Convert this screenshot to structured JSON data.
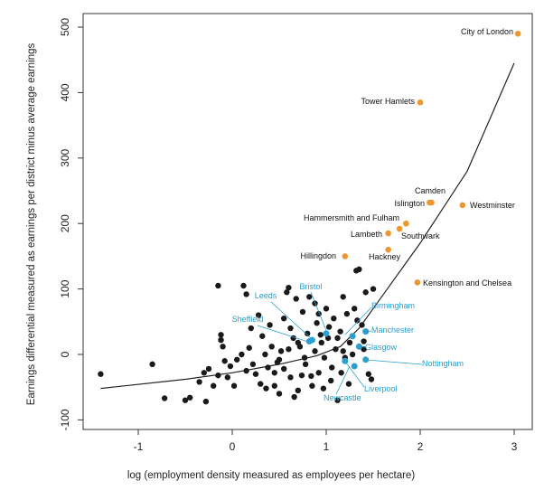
{
  "chart_data": {
    "type": "scatter",
    "xlabel": "log  (employment density measured as employees per hectare)",
    "ylabel": "Earnings differential measured as earnings per district minus average earnings",
    "xlim": [
      -1.6,
      3.2
    ],
    "ylim": [
      -100,
      520
    ],
    "xticks": [
      -1,
      0,
      1,
      2,
      3
    ],
    "yticks": [
      -100,
      0,
      100,
      200,
      300,
      400,
      500
    ],
    "colors": {
      "other": "#1a1a1a",
      "cities": "#2a9fd0",
      "london": "#f0962e",
      "fit": "#222222"
    },
    "fit_line": [
      [
        -1.4,
        -52
      ],
      [
        -0.5,
        -38
      ],
      [
        0.0,
        -28
      ],
      [
        0.5,
        -15
      ],
      [
        0.9,
        -2
      ],
      [
        1.15,
        12
      ],
      [
        1.35,
        40
      ],
      [
        1.6,
        90
      ],
      [
        2.0,
        170
      ],
      [
        2.5,
        280
      ],
      [
        3.0,
        445
      ]
    ],
    "london_points": [
      {
        "label": "City of London",
        "x": 3.04,
        "y": 490
      },
      {
        "label": "Tower Hamlets",
        "x": 2.0,
        "y": 385
      },
      {
        "label": "Westminster",
        "x": 2.45,
        "y": 228
      },
      {
        "label": "Camden",
        "x": 2.12,
        "y": 232
      },
      {
        "label": "Islington",
        "x": 2.1,
        "y": 232
      },
      {
        "label": "Hammersmith and Fulham",
        "x": 1.85,
        "y": 200
      },
      {
        "label": "Southwark",
        "x": 1.78,
        "y": 192
      },
      {
        "label": "Lambeth",
        "x": 1.66,
        "y": 185
      },
      {
        "label": "Hackney",
        "x": 1.66,
        "y": 160
      },
      {
        "label": "Hillingdon",
        "x": 1.2,
        "y": 150
      },
      {
        "label": "Kensington and Chelsea",
        "x": 1.97,
        "y": 110
      }
    ],
    "city_points": [
      {
        "label": "Bristol",
        "x": 1.0,
        "y": 32
      },
      {
        "label": "Leeds",
        "x": 0.85,
        "y": 22
      },
      {
        "label": "Sheffield",
        "x": 0.82,
        "y": 20
      },
      {
        "label": "Birmingham",
        "x": 1.28,
        "y": 28
      },
      {
        "label": "Manchester",
        "x": 1.42,
        "y": 35
      },
      {
        "label": "Glasgow",
        "x": 1.35,
        "y": 12
      },
      {
        "label": "Nottingham",
        "x": 1.42,
        "y": -8
      },
      {
        "label": "Liverpool",
        "x": 1.2,
        "y": -10
      },
      {
        "label": "Newcastle",
        "x": 1.3,
        "y": -18
      }
    ],
    "other_points": [
      [
        -1.4,
        -30
      ],
      [
        -0.85,
        -15
      ],
      [
        -0.72,
        -67
      ],
      [
        -0.5,
        -70
      ],
      [
        -0.45,
        -66
      ],
      [
        -0.28,
        -72
      ],
      [
        -0.35,
        -42
      ],
      [
        -0.3,
        -28
      ],
      [
        -0.25,
        -22
      ],
      [
        -0.2,
        -48
      ],
      [
        -0.15,
        -32
      ],
      [
        -0.12,
        30
      ],
      [
        -0.1,
        12
      ],
      [
        -0.12,
        22
      ],
      [
        -0.15,
        105
      ],
      [
        -0.08,
        -10
      ],
      [
        -0.05,
        -35
      ],
      [
        0.05,
        -8
      ],
      [
        0.1,
        0
      ],
      [
        0.12,
        105
      ],
      [
        0.15,
        92
      ],
      [
        0.18,
        10
      ],
      [
        0.22,
        -15
      ],
      [
        0.25,
        -30
      ],
      [
        0.3,
        -45
      ],
      [
        0.32,
        28
      ],
      [
        0.35,
        0
      ],
      [
        0.38,
        -20
      ],
      [
        0.4,
        45
      ],
      [
        0.42,
        12
      ],
      [
        0.45,
        -28
      ],
      [
        0.48,
        -12
      ],
      [
        0.5,
        -60
      ],
      [
        0.52,
        5
      ],
      [
        0.55,
        55
      ],
      [
        0.58,
        95
      ],
      [
        0.6,
        102
      ],
      [
        0.62,
        -35
      ],
      [
        0.65,
        25
      ],
      [
        0.68,
        85
      ],
      [
        0.7,
        -55
      ],
      [
        0.72,
        12
      ],
      [
        0.75,
        65
      ],
      [
        0.78,
        -15
      ],
      [
        0.8,
        32
      ],
      [
        0.82,
        88
      ],
      [
        0.85,
        -48
      ],
      [
        0.88,
        5
      ],
      [
        0.9,
        48
      ],
      [
        0.92,
        -28
      ],
      [
        0.95,
        18
      ],
      [
        0.98,
        -5
      ],
      [
        1.0,
        70
      ],
      [
        1.02,
        25
      ],
      [
        1.05,
        -40
      ],
      [
        1.08,
        55
      ],
      [
        1.1,
        8
      ],
      [
        1.12,
        -70
      ],
      [
        1.15,
        35
      ],
      [
        1.18,
        88
      ],
      [
        1.2,
        -5
      ],
      [
        1.22,
        62
      ],
      [
        1.25,
        18
      ],
      [
        1.28,
        0
      ],
      [
        1.3,
        70
      ],
      [
        1.32,
        128
      ],
      [
        1.35,
        130
      ],
      [
        1.38,
        45
      ],
      [
        1.4,
        20
      ],
      [
        1.42,
        95
      ],
      [
        1.45,
        -30
      ],
      [
        1.48,
        -38
      ],
      [
        1.5,
        100
      ],
      [
        0.45,
        -48
      ],
      [
        0.55,
        -22
      ],
      [
        0.62,
        40
      ],
      [
        0.7,
        18
      ],
      [
        0.77,
        -5
      ],
      [
        0.84,
        -33
      ],
      [
        0.92,
        62
      ],
      [
        0.97,
        -52
      ],
      [
        1.03,
        42
      ],
      [
        1.12,
        25
      ],
      [
        1.18,
        5
      ],
      [
        1.24,
        -45
      ],
      [
        1.33,
        52
      ],
      [
        1.4,
        8
      ],
      [
        0.28,
        60
      ],
      [
        0.36,
        -52
      ],
      [
        0.5,
        -8
      ],
      [
        0.66,
        -65
      ],
      [
        0.74,
        -32
      ],
      [
        0.88,
        78
      ],
      [
        1.06,
        -20
      ],
      [
        0.15,
        -25
      ],
      [
        0.2,
        40
      ],
      [
        0.02,
        -48
      ],
      [
        -0.02,
        -18
      ],
      [
        0.6,
        8
      ],
      [
        0.94,
        30
      ],
      [
        1.16,
        -28
      ]
    ]
  }
}
